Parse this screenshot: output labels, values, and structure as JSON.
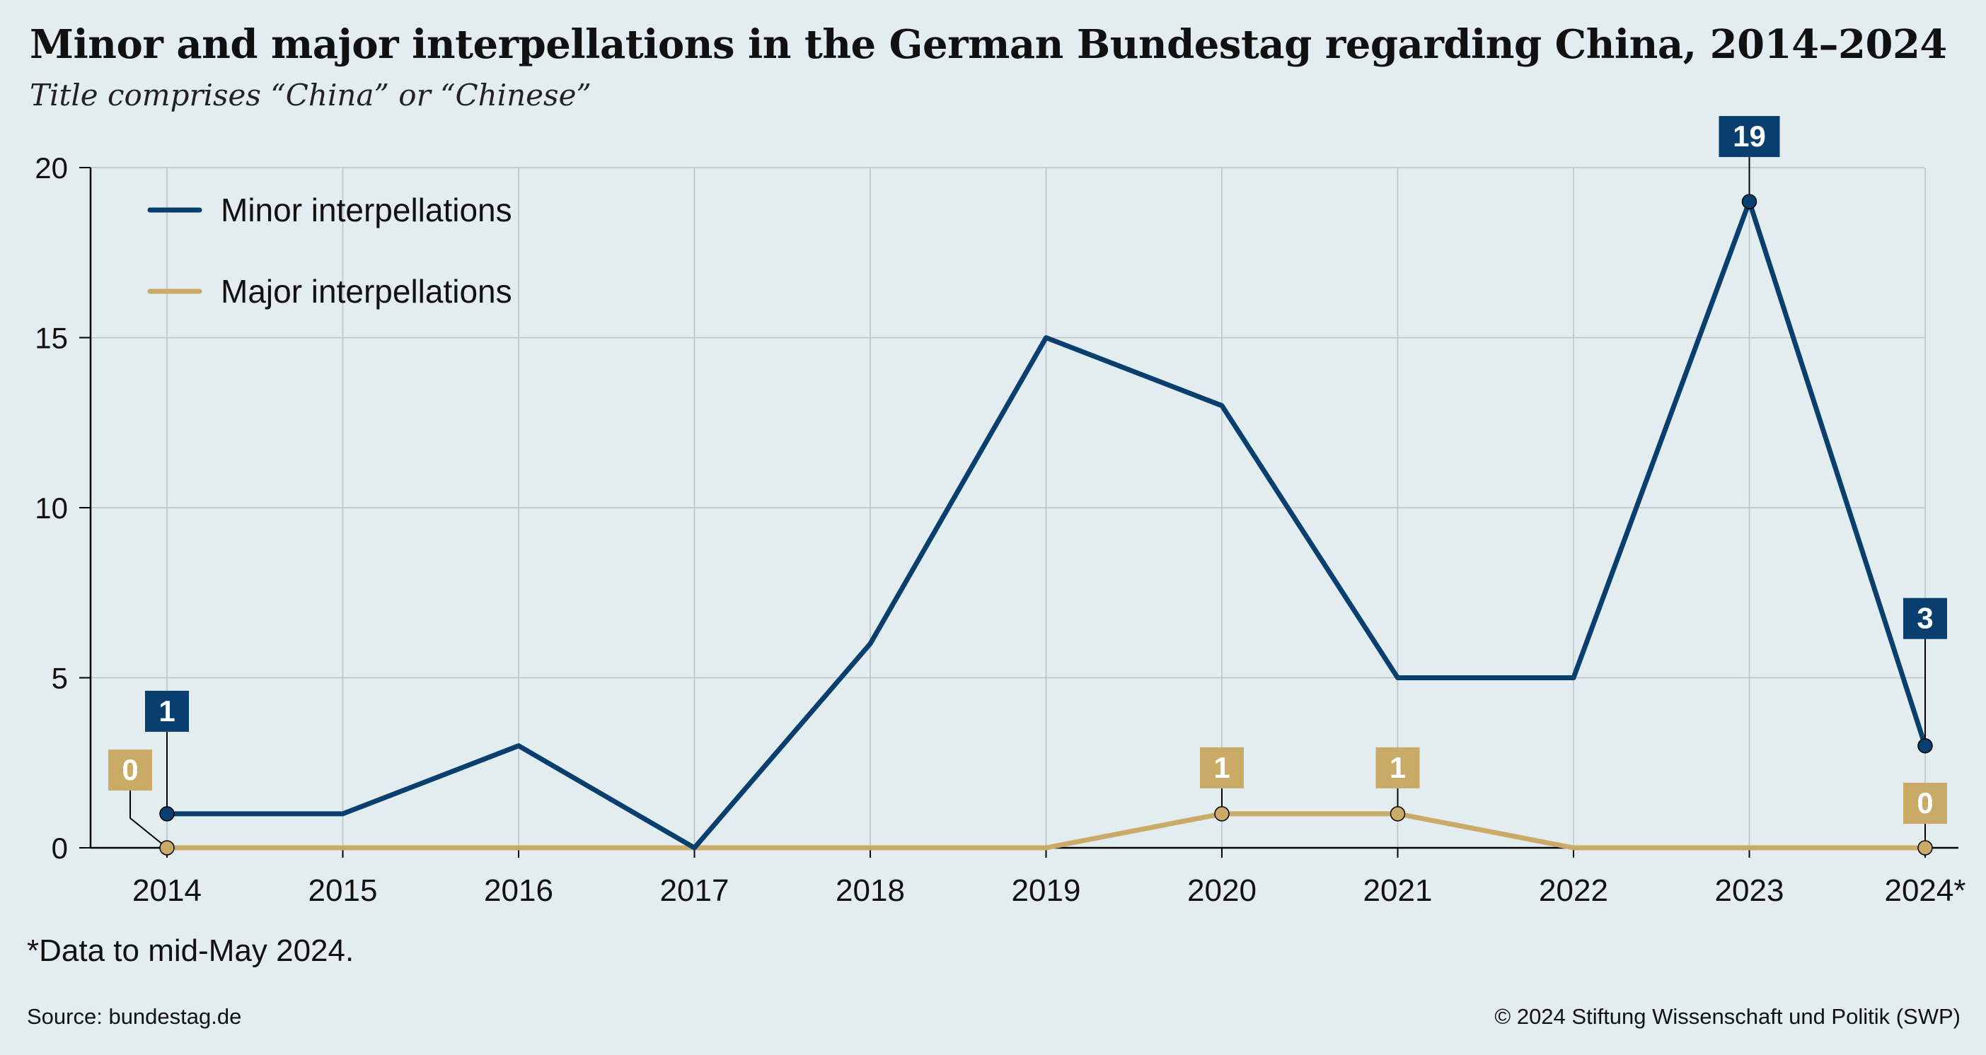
{
  "title": "Minor and major interpellations in the German Bundestag regarding China, 2014–2024",
  "subtitle": "Title comprises “China” or “Chinese”",
  "footnote": "*Data to mid-May 2024.",
  "source": "Source: bundestag.de",
  "copyright": "© 2024 Stiftung Wissenschaft und Politik (SWP)",
  "colors": {
    "minor": "#083f6e",
    "major": "#c9aa67",
    "background": "#e3ecee",
    "grid": "#b9c2c5"
  },
  "chart_data": {
    "type": "line",
    "categories": [
      "2014",
      "2015",
      "2016",
      "2017",
      "2018",
      "2019",
      "2020",
      "2021",
      "2022",
      "2023",
      "2024*"
    ],
    "series": [
      {
        "name": "Minor interpellations",
        "color": "#083f6e",
        "values": [
          1,
          1,
          3,
          0,
          6,
          15,
          13,
          5,
          5,
          19,
          3
        ]
      },
      {
        "name": "Major interpellations",
        "color": "#c9aa67",
        "values": [
          0,
          0,
          0,
          0,
          0,
          0,
          1,
          1,
          0,
          0,
          0
        ]
      }
    ],
    "ylim": [
      0,
      20
    ],
    "yticks": [
      "0",
      "5",
      "10",
      "15",
      "20"
    ],
    "grid": true,
    "legend": "top-left",
    "annotations": [
      {
        "series": "Minor interpellations",
        "category": "2014",
        "label": "1"
      },
      {
        "series": "Minor interpellations",
        "category": "2023",
        "label": "19"
      },
      {
        "series": "Minor interpellations",
        "category": "2024*",
        "label": "3"
      },
      {
        "series": "Major interpellations",
        "category": "2014",
        "label": "0"
      },
      {
        "series": "Major interpellations",
        "category": "2020",
        "label": "1"
      },
      {
        "series": "Major interpellations",
        "category": "2021",
        "label": "1"
      },
      {
        "series": "Major interpellations",
        "category": "2024*",
        "label": "0"
      }
    ]
  }
}
